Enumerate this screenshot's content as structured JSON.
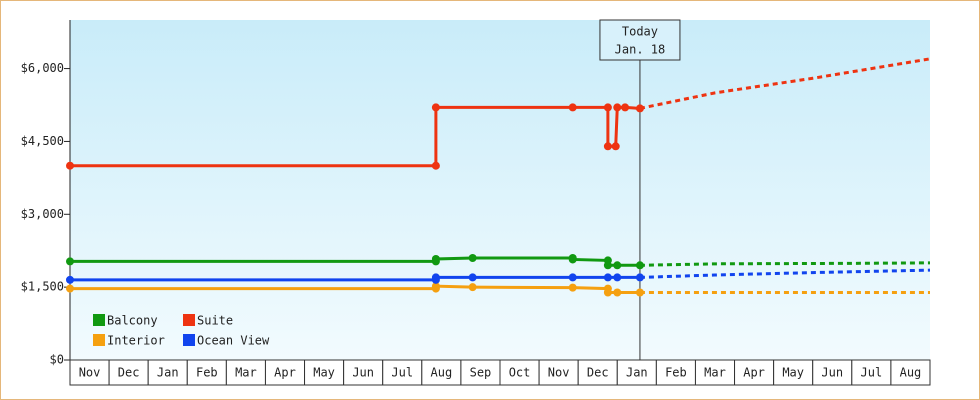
{
  "chart_data": {
    "type": "line",
    "categories": [
      "Nov",
      "Dec",
      "Jan",
      "Feb",
      "Mar",
      "Apr",
      "May",
      "Jun",
      "Jul",
      "Aug",
      "Sep",
      "Oct",
      "Nov",
      "Dec",
      "Jan",
      "Feb",
      "Mar",
      "Apr",
      "May",
      "Jun",
      "Jul",
      "Aug"
    ],
    "xlim": [
      0,
      22
    ],
    "ylim": [
      0,
      7000
    ],
    "yticks": [
      {
        "value": 0,
        "label": "$0"
      },
      {
        "value": 1500,
        "label": "$1,500"
      },
      {
        "value": 3000,
        "label": "$3,000"
      },
      {
        "value": 4500,
        "label": "$4,500"
      },
      {
        "value": 6000,
        "label": "$6,000"
      }
    ],
    "annotation": {
      "x": 14.58,
      "lines": [
        "Today",
        "Jan. 18"
      ]
    },
    "series": [
      {
        "name": "Balcony",
        "color": "#119911",
        "x": [
          0,
          9.36,
          9.36,
          10.3,
          12.86,
          12.86,
          13.76,
          13.76,
          14.0,
          14.58
        ],
        "values": [
          2030,
          2030,
          2080,
          2100,
          2100,
          2070,
          2050,
          1950,
          1950,
          1950
        ],
        "forecast": {
          "x": [
            14.58,
            16.5,
            20,
            22
          ],
          "values": [
            1950,
            1980,
            1990,
            2000
          ]
        }
      },
      {
        "name": "Suite",
        "color": "#ee3311",
        "x": [
          0,
          9.36,
          9.36,
          12.86,
          13.76,
          13.76,
          13.96,
          14.0,
          14.2,
          14.58
        ],
        "values": [
          4000,
          4000,
          5200,
          5200,
          5200,
          4400,
          4400,
          5200,
          5200,
          5180
        ],
        "forecast": {
          "x": [
            14.58,
            16.5,
            19,
            22
          ],
          "values": [
            5180,
            5500,
            5800,
            6200
          ]
        }
      },
      {
        "name": "Interior",
        "color": "#f5a010",
        "x": [
          0,
          9.36,
          9.36,
          10.3,
          12.86,
          13.76,
          13.76,
          14.0,
          14.58
        ],
        "values": [
          1470,
          1470,
          1520,
          1500,
          1490,
          1470,
          1390,
          1390,
          1390
        ],
        "forecast": {
          "x": [
            14.58,
            22
          ],
          "values": [
            1390,
            1390
          ]
        }
      },
      {
        "name": "Ocean View",
        "color": "#1144ee",
        "x": [
          0,
          9.36,
          9.36,
          10.3,
          12.86,
          13.76,
          14.0,
          14.58
        ],
        "values": [
          1650,
          1650,
          1700,
          1700,
          1700,
          1700,
          1700,
          1700
        ],
        "forecast": {
          "x": [
            14.58,
            16.5,
            19,
            22
          ],
          "values": [
            1700,
            1750,
            1800,
            1850
          ]
        }
      }
    ]
  }
}
